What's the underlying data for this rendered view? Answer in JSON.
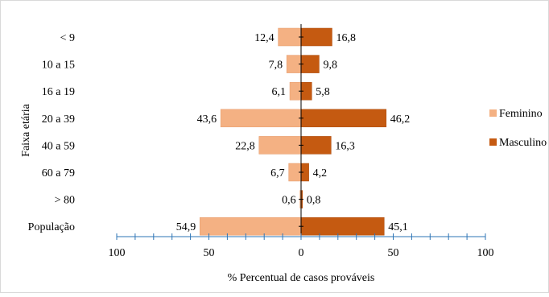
{
  "chart_data": {
    "type": "bar",
    "orientation": "horizontal",
    "layout": "diverging",
    "categories": [
      "< 9",
      "10 a 15",
      "16 a 19",
      "20 a 39",
      "40 a 59",
      "60 a 79",
      "> 80",
      "População"
    ],
    "series": [
      {
        "name": "Feminino",
        "side": "left",
        "color": "#F4B183",
        "values": [
          12.4,
          7.8,
          6.1,
          43.6,
          22.8,
          6.7,
          0.6,
          54.9
        ],
        "labels": [
          "12,4",
          "7,8",
          "6,1",
          "43,6",
          "22,8",
          "6,7",
          "0,6",
          "54,9"
        ]
      },
      {
        "name": "Masculino",
        "side": "right",
        "color": "#C55A11",
        "values": [
          16.8,
          9.8,
          5.8,
          46.2,
          16.3,
          4.2,
          0.8,
          45.1
        ],
        "labels": [
          "16,8",
          "9,8",
          "5,8",
          "46,2",
          "16,3",
          "4,2",
          "0,8",
          "45,1"
        ]
      }
    ],
    "xlabel": "% Percentual de casos prováveis",
    "ylabel": "Faixa etária",
    "xlim": [
      -100,
      100
    ],
    "xticks": [
      -100,
      -50,
      0,
      50,
      100
    ],
    "xtick_labels": [
      "100",
      "50",
      "0",
      "50",
      "100"
    ],
    "x_minor_step": 10,
    "axis_color": "#2E75B6",
    "legend": "right",
    "grid": false
  }
}
